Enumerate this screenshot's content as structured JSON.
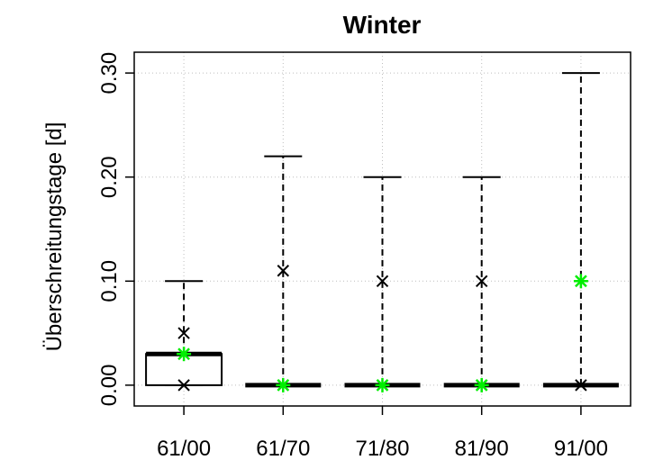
{
  "chart_data": {
    "type": "boxplot",
    "title": "Winter",
    "ylabel": "Überschreitungstage [d]",
    "xlabel": "",
    "ylim": [
      -0.02,
      0.32
    ],
    "yticks": [
      0.0,
      0.1,
      0.2,
      0.3
    ],
    "ytick_labels": [
      "0.00",
      "0.10",
      "0.20",
      "0.30"
    ],
    "grid": true,
    "categories": [
      "61/00",
      "61/70",
      "71/80",
      "81/90",
      "91/00"
    ],
    "boxes": [
      {
        "category": "61/00",
        "min": 0.0,
        "q1": 0.0,
        "median": 0.03,
        "q3": 0.03,
        "max": 0.1
      },
      {
        "category": "61/70",
        "min": 0.0,
        "q1": 0.0,
        "median": 0.0,
        "q3": 0.0,
        "max": 0.22
      },
      {
        "category": "71/80",
        "min": 0.0,
        "q1": 0.0,
        "median": 0.0,
        "q3": 0.0,
        "max": 0.2
      },
      {
        "category": "81/90",
        "min": 0.0,
        "q1": 0.0,
        "median": 0.0,
        "q3": 0.0,
        "max": 0.2
      },
      {
        "category": "91/00",
        "min": 0.0,
        "q1": 0.0,
        "median": 0.0,
        "q3": 0.0,
        "max": 0.3
      }
    ],
    "x_markers": [
      {
        "category": "61/00",
        "values": [
          0.05,
          0.0
        ]
      },
      {
        "category": "61/70",
        "values": [
          0.11
        ]
      },
      {
        "category": "71/80",
        "values": [
          0.1
        ]
      },
      {
        "category": "81/90",
        "values": [
          0.1
        ]
      },
      {
        "category": "91/00",
        "values": [
          0.0
        ]
      }
    ],
    "green_markers": [
      {
        "category": "61/00",
        "value": 0.03
      },
      {
        "category": "61/70",
        "value": 0.0
      },
      {
        "category": "71/80",
        "value": 0.0
      },
      {
        "category": "81/90",
        "value": 0.0
      },
      {
        "category": "91/00",
        "value": 0.1
      }
    ],
    "colors": {
      "axis": "#000000",
      "grid": "#bebebe",
      "box": "#000000",
      "x_marker": "#000000",
      "green_marker": "#00ee00"
    }
  }
}
